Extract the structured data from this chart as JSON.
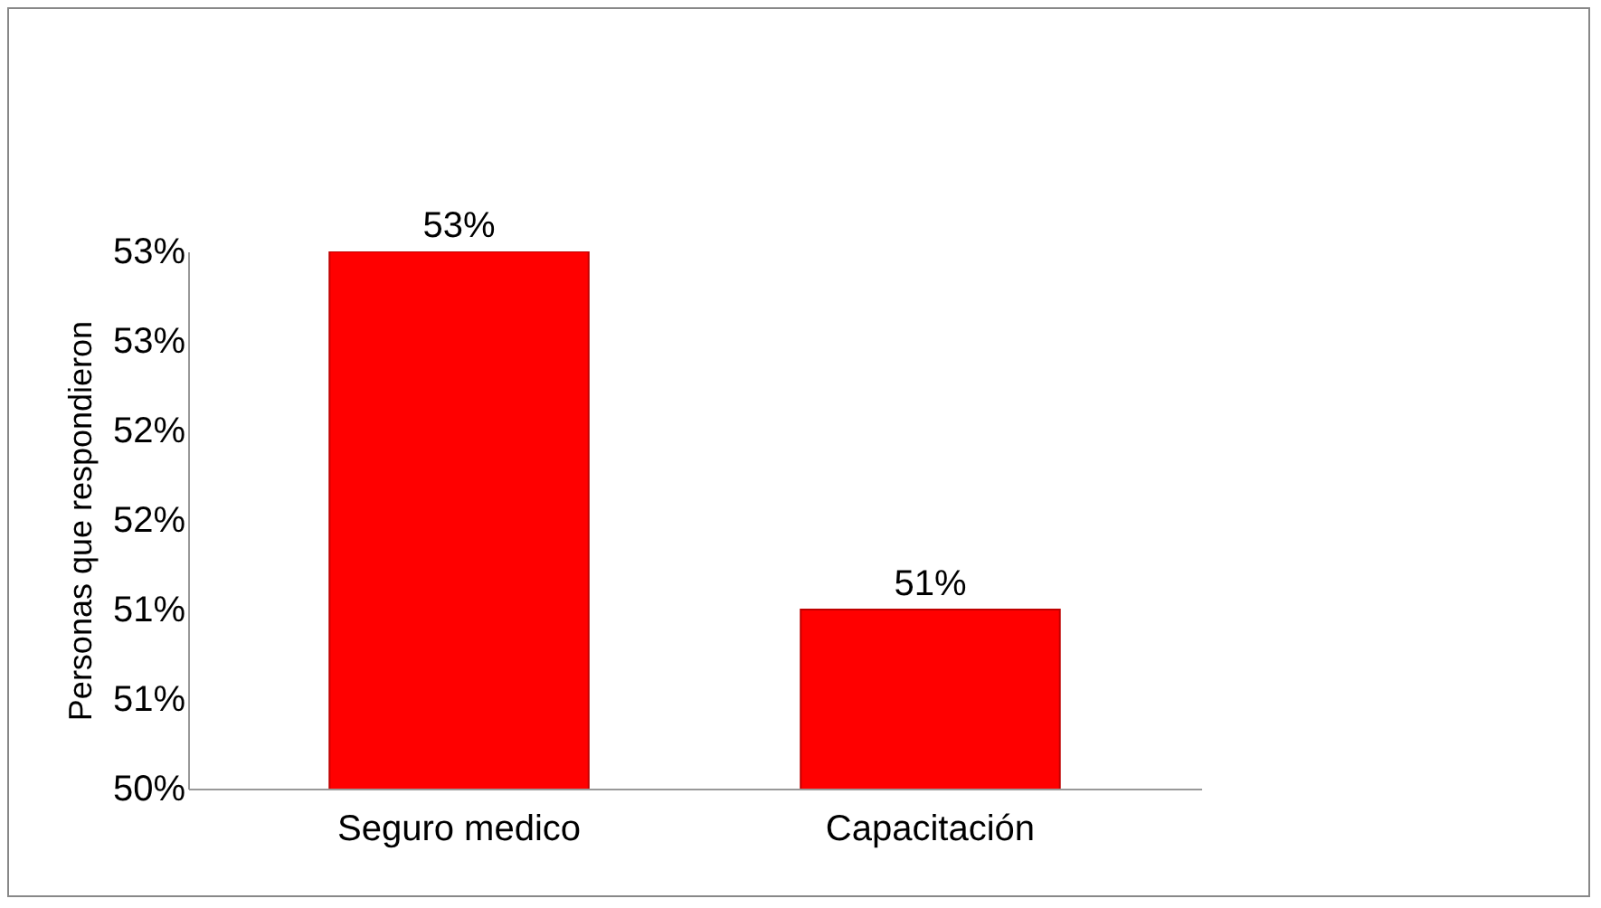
{
  "chart_data": {
    "type": "bar",
    "ylabel": "Personas que respondieron",
    "categories": [
      "Seguro medico",
      "Capacitación"
    ],
    "series": [
      {
        "color": "#ff0000",
        "values": [
          53,
          51
        ],
        "value_labels": [
          "53%",
          "51%"
        ]
      }
    ],
    "ylim": [
      50,
      53
    ],
    "yticks": [
      {
        "value": 50,
        "label": "50%"
      },
      {
        "value": 50.5,
        "label": "51%"
      },
      {
        "value": 51,
        "label": "51%"
      },
      {
        "value": 51.5,
        "label": "52%"
      },
      {
        "value": 52,
        "label": "52%"
      },
      {
        "value": 52.5,
        "label": "53%"
      },
      {
        "value": 53,
        "label": "53%"
      }
    ],
    "grid": false
  }
}
